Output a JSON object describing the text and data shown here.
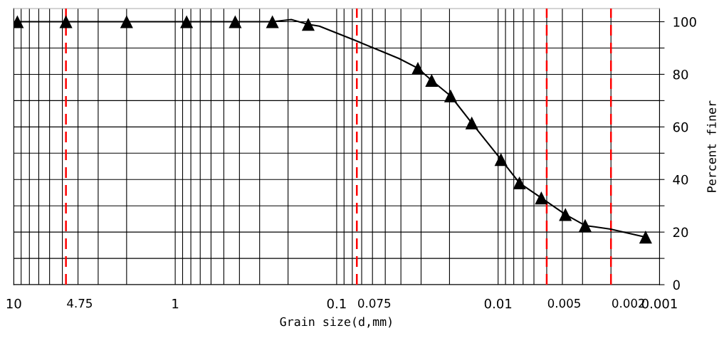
{
  "chart_data": {
    "type": "line",
    "xlabel": "Grain size(d,mm)",
    "ylabel": "Percent finer",
    "series": [
      {
        "type": "line",
        "color": "#000000",
        "marker": "none",
        "x": [
          9.5,
          4.75,
          2,
          0.85,
          0.425,
          0.25,
          0.191,
          0.15,
          0.128,
          0.0768,
          0.0538,
          0.0411,
          0.0314,
          0.0258,
          0.0197,
          0.01456,
          0.0096,
          0.00738,
          0.0054,
          0.00383,
          0.00289,
          0.00252,
          0.00201,
          0.00122
        ],
        "values": [
          100,
          100,
          100,
          100,
          100,
          100,
          100.8,
          99,
          98.3,
          92.9,
          89,
          86,
          82.3,
          77.7,
          71.8,
          61.5,
          47.6,
          38.7,
          33,
          26.7,
          22.5,
          22,
          21.1,
          18.1
        ]
      },
      {
        "type": "scatter",
        "color": "#000000",
        "marker": "triangle",
        "x": [
          9.5,
          4.75,
          2,
          0.85,
          0.425,
          0.25,
          0.15,
          0.0314,
          0.0258,
          0.0197,
          0.01456,
          0.0096,
          0.00738,
          0.0054,
          0.00383,
          0.00289,
          0.00122
        ],
        "values": [
          100,
          100,
          100,
          100,
          100,
          100,
          99,
          82.3,
          77.7,
          71.8,
          61.5,
          47.6,
          38.7,
          33,
          26.7,
          22.5,
          18.1
        ]
      }
    ],
    "log": "x",
    "xlim": [
      10,
      0.001
    ],
    "ylim": [
      0,
      105
    ],
    "xticks": [
      10,
      1,
      0.1,
      0.01,
      0.001
    ],
    "yticks": [
      0,
      {
        "value": 10,
        "label": null
      },
      20,
      {
        "value": 30,
        "label": null
      },
      40,
      {
        "value": 50,
        "label": null
      },
      60,
      {
        "value": 70,
        "label": null
      },
      80,
      {
        "value": 90,
        "label": null
      },
      100
    ],
    "grid": true,
    "line_style": "solid",
    "ref_lines": [
      {
        "axis": "x",
        "value": 4.75,
        "label": "4.75",
        "color": "#ff0000",
        "line_style": "dashed"
      },
      {
        "axis": "x",
        "value": 0.075,
        "label": "0.075",
        "color": "#ff0000",
        "line_style": "dashed"
      },
      {
        "axis": "x",
        "value": 0.005,
        "label": "0.005",
        "color": "#ff0000",
        "line_style": "dashed"
      },
      {
        "axis": "x",
        "value": 0.002,
        "label": "0.002",
        "color": "#ff0000",
        "line_style": "dashed"
      }
    ]
  }
}
